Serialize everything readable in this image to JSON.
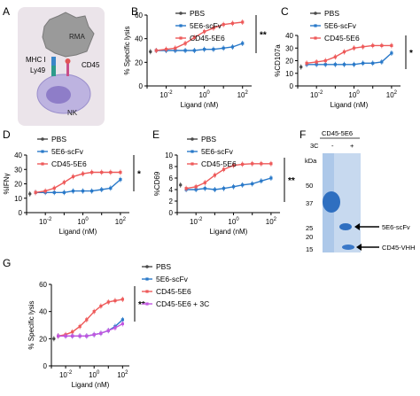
{
  "colors": {
    "pbs": "#4a4a4a",
    "scfv": "#2979c9",
    "cd45": "#ee5a5a",
    "cd45_3c": "#c255e0"
  },
  "panel_letters": [
    "A",
    "B",
    "C",
    "D",
    "E",
    "F",
    "G"
  ],
  "schematic": {
    "labels": [
      "RMA",
      "MHC I",
      "Ly49",
      "CD45",
      "NK"
    ]
  },
  "chart_data": [
    {
      "panel": "B",
      "type": "line",
      "ylabel": "% Specific lysis",
      "xlabel": "Ligand (nM)",
      "xscale": "log",
      "xlim": [
        0.001,
        300
      ],
      "ylim": [
        0,
        60
      ],
      "yticks": [
        "0",
        "20",
        "40",
        "60"
      ],
      "xticks": [
        "10-2",
        "100",
        "102"
      ],
      "significance": "**",
      "legend": [
        "PBS",
        "5E6-scFv",
        "CD45-5E6"
      ],
      "series": [
        {
          "name": "PBS",
          "points": [
            [
              0.0015,
              29
            ]
          ]
        },
        {
          "name": "5E6-scFv",
          "points": [
            [
              0.003,
              30
            ],
            [
              0.01,
              30
            ],
            [
              0.03,
              30
            ],
            [
              0.1,
              30
            ],
            [
              0.3,
              30
            ],
            [
              1,
              31
            ],
            [
              3,
              31
            ],
            [
              10,
              32
            ],
            [
              30,
              33
            ],
            [
              100,
              36
            ]
          ]
        },
        {
          "name": "CD45-5E6",
          "points": [
            [
              0.003,
              30
            ],
            [
              0.01,
              31
            ],
            [
              0.03,
              32
            ],
            [
              0.1,
              36
            ],
            [
              0.3,
              41
            ],
            [
              1,
              46
            ],
            [
              3,
              49
            ],
            [
              10,
              52
            ],
            [
              30,
              53
            ],
            [
              100,
              54
            ]
          ]
        }
      ]
    },
    {
      "panel": "C",
      "type": "line",
      "ylabel": "%CD107a",
      "xlabel": "Ligand (nM)",
      "xscale": "log",
      "xlim": [
        0.001,
        300
      ],
      "ylim": [
        0,
        40
      ],
      "yticks": [
        "0",
        "10",
        "20",
        "30",
        "40"
      ],
      "xticks": [
        "10-2",
        "100",
        "102"
      ],
      "significance": "*",
      "legend": [
        "PBS",
        "5E6-scFv",
        "CD45-5E6"
      ],
      "series": [
        {
          "name": "PBS",
          "points": [
            [
              0.0015,
              15
            ]
          ]
        },
        {
          "name": "5E6-scFv",
          "points": [
            [
              0.003,
              17
            ],
            [
              0.01,
              17
            ],
            [
              0.03,
              17
            ],
            [
              0.1,
              17
            ],
            [
              0.3,
              17
            ],
            [
              1,
              17
            ],
            [
              3,
              18
            ],
            [
              10,
              18
            ],
            [
              30,
              19
            ],
            [
              100,
              26
            ]
          ]
        },
        {
          "name": "CD45-5E6",
          "points": [
            [
              0.003,
              18
            ],
            [
              0.01,
              19
            ],
            [
              0.03,
              20
            ],
            [
              0.1,
              23
            ],
            [
              0.3,
              27
            ],
            [
              1,
              30
            ],
            [
              3,
              31
            ],
            [
              10,
              32
            ],
            [
              30,
              32
            ],
            [
              100,
              32
            ]
          ]
        }
      ]
    },
    {
      "panel": "D",
      "type": "line",
      "ylabel": "%IFNγ",
      "xlabel": "Ligand (nM)",
      "xscale": "log",
      "xlim": [
        0.001,
        300
      ],
      "ylim": [
        0,
        40
      ],
      "yticks": [
        "0",
        "10",
        "20",
        "30",
        "40"
      ],
      "xticks": [
        "10-2",
        "100",
        "102"
      ],
      "significance": "*",
      "legend": [
        "PBS",
        "5E6-scFv",
        "CD45-5E6"
      ],
      "series": [
        {
          "name": "PBS",
          "points": [
            [
              0.0015,
              13
            ]
          ]
        },
        {
          "name": "5E6-scFv",
          "points": [
            [
              0.003,
              14
            ],
            [
              0.01,
              14
            ],
            [
              0.03,
              14
            ],
            [
              0.1,
              14
            ],
            [
              0.3,
              15
            ],
            [
              1,
              15
            ],
            [
              3,
              15
            ],
            [
              10,
              16
            ],
            [
              30,
              17
            ],
            [
              100,
              23
            ]
          ]
        },
        {
          "name": "CD45-5E6",
          "points": [
            [
              0.003,
              14
            ],
            [
              0.01,
              15
            ],
            [
              0.03,
              17
            ],
            [
              0.1,
              21
            ],
            [
              0.3,
              25
            ],
            [
              1,
              27
            ],
            [
              3,
              28
            ],
            [
              10,
              28
            ],
            [
              30,
              28
            ],
            [
              100,
              28
            ]
          ]
        }
      ]
    },
    {
      "panel": "E",
      "type": "line",
      "ylabel": "%CD69",
      "xlabel": "Ligand (nM)",
      "xscale": "log",
      "xlim": [
        0.001,
        300
      ],
      "ylim": [
        0,
        10
      ],
      "yticks": [
        "0",
        "2",
        "4",
        "6",
        "8",
        "10"
      ],
      "xticks": [
        "10-2",
        "100",
        "102"
      ],
      "significance": "**",
      "legend": [
        "PBS",
        "5E6-scFv",
        "CD45-5E6"
      ],
      "series": [
        {
          "name": "PBS",
          "points": [
            [
              0.0015,
              4.8
            ]
          ]
        },
        {
          "name": "5E6-scFv",
          "points": [
            [
              0.003,
              4.0
            ],
            [
              0.01,
              4.0
            ],
            [
              0.03,
              4.2
            ],
            [
              0.1,
              4.0
            ],
            [
              0.3,
              4.2
            ],
            [
              1,
              4.5
            ],
            [
              3,
              4.8
            ],
            [
              10,
              5.0
            ],
            [
              30,
              5.5
            ],
            [
              100,
              6.0
            ]
          ]
        },
        {
          "name": "CD45-5E6",
          "points": [
            [
              0.003,
              4.2
            ],
            [
              0.01,
              4.5
            ],
            [
              0.03,
              5.2
            ],
            [
              0.1,
              6.5
            ],
            [
              0.3,
              7.5
            ],
            [
              1,
              8.2
            ],
            [
              3,
              8.4
            ],
            [
              10,
              8.5
            ],
            [
              30,
              8.5
            ],
            [
              100,
              8.5
            ]
          ]
        }
      ]
    },
    {
      "panel": "G",
      "type": "line",
      "ylabel": "% Specific lysis",
      "xlabel": "Ligand (nM)",
      "xscale": "log",
      "xlim": [
        0.001,
        300
      ],
      "ylim": [
        0,
        60
      ],
      "yticks": [
        "0",
        "20",
        "40",
        "60"
      ],
      "xticks": [
        "10-2",
        "100",
        "102"
      ],
      "significance": "**",
      "legend": [
        "PBS",
        "5E6-scFv",
        "CD45-5E6",
        "CD45-5E6 + 3C"
      ],
      "series": [
        {
          "name": "PBS",
          "points": [
            [
              0.0015,
              20
            ]
          ]
        },
        {
          "name": "5E6-scFv",
          "points": [
            [
              0.003,
              22
            ],
            [
              0.01,
              22
            ],
            [
              0.03,
              22
            ],
            [
              0.1,
              22
            ],
            [
              0.3,
              22
            ],
            [
              1,
              23
            ],
            [
              3,
              24
            ],
            [
              10,
              26
            ],
            [
              30,
              29
            ],
            [
              100,
              34
            ]
          ]
        },
        {
          "name": "CD45-5E6",
          "points": [
            [
              0.003,
              22
            ],
            [
              0.01,
              23
            ],
            [
              0.03,
              25
            ],
            [
              0.1,
              29
            ],
            [
              0.3,
              34
            ],
            [
              1,
              40
            ],
            [
              3,
              44
            ],
            [
              10,
              47
            ],
            [
              30,
              48
            ],
            [
              100,
              49
            ]
          ]
        },
        {
          "name": "CD45-5E6 + 3C",
          "points": [
            [
              0.003,
              22
            ],
            [
              0.01,
              22
            ],
            [
              0.03,
              22
            ],
            [
              0.1,
              22
            ],
            [
              0.3,
              22
            ],
            [
              1,
              23
            ],
            [
              3,
              24
            ],
            [
              10,
              26
            ],
            [
              30,
              28
            ],
            [
              100,
              31
            ]
          ]
        }
      ]
    }
  ],
  "gel": {
    "title": "CD45-5E6",
    "enzyme_label": "3C",
    "lane_labels": [
      "-",
      "+"
    ],
    "ladder_header": "kDa",
    "ladder_values": [
      "50",
      "37",
      "25",
      "20",
      "15"
    ],
    "band_labels": [
      "5E6-scFv",
      "CD45-VHH"
    ]
  }
}
